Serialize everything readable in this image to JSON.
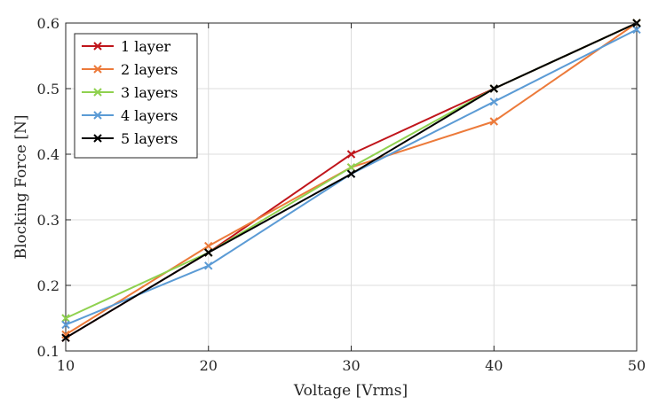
{
  "chart_data": {
    "type": "line",
    "title": "",
    "xlabel": "Voltage [Vrms]",
    "ylabel": "Blocking Force [N]",
    "x": [
      10,
      20,
      30,
      40,
      50
    ],
    "xlim": [
      10,
      50
    ],
    "ylim": [
      0.1,
      0.6
    ],
    "xticks": [
      "10",
      "20",
      "30",
      "40",
      "50"
    ],
    "yticks": [
      "0.1",
      "0.2",
      "0.3",
      "0.4",
      "0.5",
      "0.6"
    ],
    "grid": true,
    "legend_position": "top-left",
    "marker": "x",
    "series": [
      {
        "name": "1 layer",
        "color": "#c0151b",
        "values": [
          0.12,
          0.25,
          0.4,
          0.5,
          0.6
        ]
      },
      {
        "name": "2 layers",
        "color": "#ec7a3a",
        "values": [
          0.125,
          0.26,
          0.38,
          0.45,
          0.6
        ]
      },
      {
        "name": "3 layers",
        "color": "#8fd14f",
        "values": [
          0.15,
          0.25,
          0.38,
          0.5,
          0.6
        ]
      },
      {
        "name": "4 layers",
        "color": "#5b9bd5",
        "values": [
          0.14,
          0.23,
          0.37,
          0.48,
          0.59
        ]
      },
      {
        "name": "5 layers",
        "color": "#000000",
        "values": [
          0.12,
          0.25,
          0.37,
          0.5,
          0.6
        ]
      }
    ]
  }
}
